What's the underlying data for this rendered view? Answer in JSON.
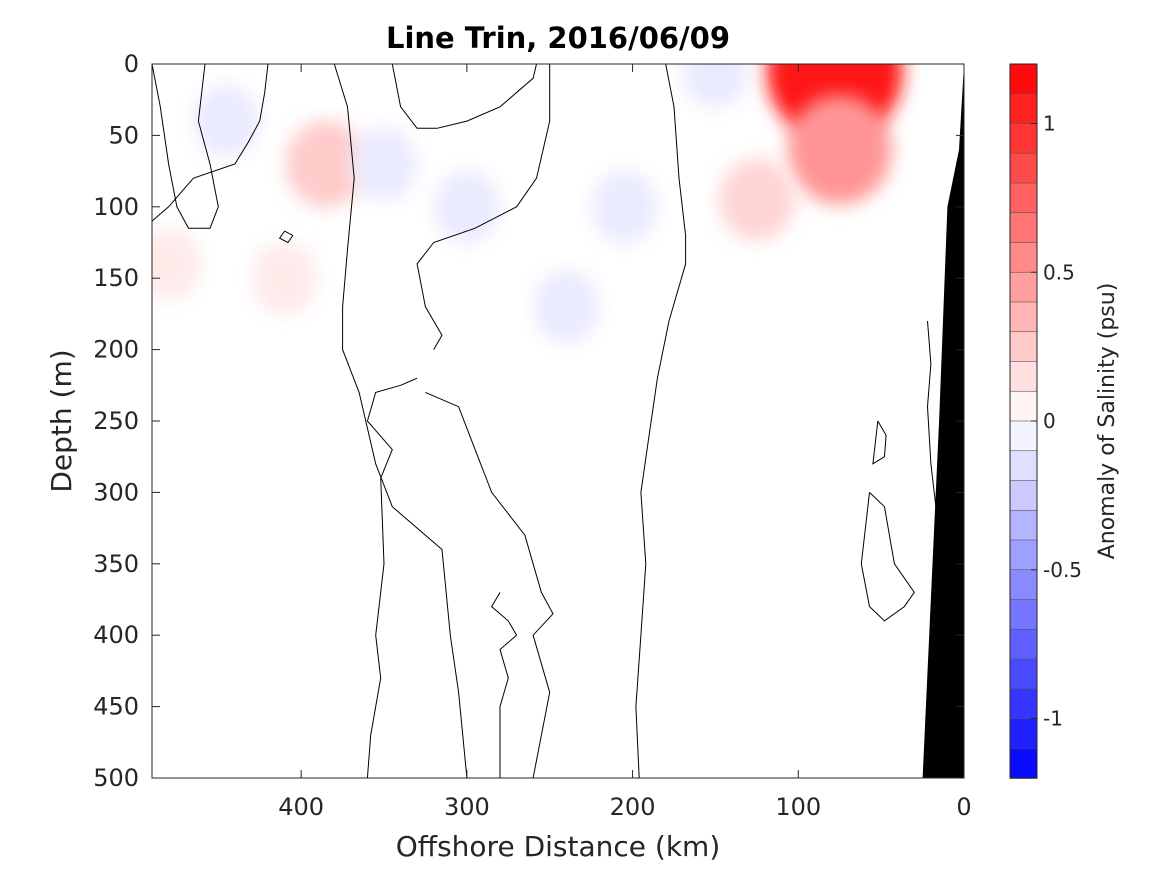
{
  "chart_data": {
    "type": "heatmap",
    "title": "Line Trin, 2016/06/09",
    "xlabel": "Offshore Distance (km)",
    "ylabel": "Depth (m)",
    "xlim": [
      490,
      0
    ],
    "ylim": [
      0,
      500
    ],
    "x_reversed": true,
    "y_reversed": true,
    "x_ticks": [
      400,
      300,
      200,
      100,
      0
    ],
    "y_ticks": [
      0,
      50,
      100,
      150,
      200,
      250,
      300,
      350,
      400,
      450,
      500
    ],
    "colorbar": {
      "label": "Anomaly of Salinity (psu)",
      "range": [
        -1.2,
        1.2
      ],
      "levels": 24,
      "ticks": [
        -1,
        -0.5,
        0,
        0.5,
        1
      ],
      "tick_labels": [
        "-1",
        "-0.5",
        "0",
        "0.5",
        "1"
      ],
      "colormap": "blue-white-red",
      "low_color": "#0000ff",
      "high_color": "#ff0000"
    },
    "zero_contour_lines": [
      [
        [
          490,
          0
        ],
        [
          485,
          30
        ],
        [
          480,
          70
        ],
        [
          475,
          100
        ],
        [
          468,
          115
        ],
        [
          455,
          115
        ],
        [
          450,
          100
        ],
        [
          455,
          70
        ],
        [
          462,
          40
        ],
        [
          458,
          0
        ]
      ],
      [
        [
          420,
          0
        ],
        [
          422,
          20
        ],
        [
          425,
          40
        ],
        [
          432,
          55
        ],
        [
          440,
          70
        ],
        [
          465,
          80
        ],
        [
          480,
          100
        ],
        [
          490,
          110
        ]
      ],
      [
        [
          405,
          120
        ],
        [
          408,
          125
        ],
        [
          413,
          122
        ],
        [
          410,
          117
        ],
        [
          405,
          120
        ]
      ],
      [
        [
          380,
          0
        ],
        [
          372,
          30
        ],
        [
          368,
          80
        ],
        [
          372,
          130
        ],
        [
          375,
          170
        ],
        [
          375,
          200
        ],
        [
          365,
          230
        ],
        [
          355,
          280
        ],
        [
          345,
          310
        ],
        [
          335,
          320
        ],
        [
          315,
          340
        ],
        [
          310,
          400
        ],
        [
          305,
          440
        ],
        [
          300,
          500
        ]
      ],
      [
        [
          345,
          0
        ],
        [
          340,
          30
        ],
        [
          330,
          45
        ],
        [
          318,
          45
        ],
        [
          300,
          40
        ],
        [
          280,
          30
        ],
        [
          260,
          10
        ],
        [
          258,
          0
        ]
      ],
      [
        [
          250,
          0
        ],
        [
          250,
          40
        ],
        [
          258,
          80
        ],
        [
          270,
          100
        ],
        [
          295,
          115
        ],
        [
          320,
          125
        ],
        [
          330,
          140
        ],
        [
          325,
          170
        ],
        [
          315,
          190
        ],
        [
          320,
          200
        ]
      ],
      [
        [
          180,
          0
        ],
        [
          175,
          30
        ],
        [
          172,
          80
        ],
        [
          168,
          120
        ],
        [
          168,
          140
        ],
        [
          178,
          180
        ],
        [
          185,
          220
        ],
        [
          190,
          260
        ],
        [
          195,
          300
        ],
        [
          192,
          350
        ],
        [
          195,
          400
        ],
        [
          198,
          450
        ],
        [
          196,
          500
        ]
      ],
      [
        [
          330,
          220
        ],
        [
          340,
          225
        ],
        [
          355,
          230
        ],
        [
          360,
          250
        ],
        [
          345,
          270
        ],
        [
          352,
          290
        ],
        [
          350,
          350
        ],
        [
          355,
          400
        ],
        [
          352,
          430
        ],
        [
          358,
          470
        ],
        [
          360,
          500
        ]
      ],
      [
        [
          325,
          230
        ],
        [
          305,
          240
        ],
        [
          295,
          270
        ],
        [
          285,
          300
        ],
        [
          265,
          330
        ],
        [
          260,
          350
        ],
        [
          255,
          370
        ],
        [
          248,
          385
        ],
        [
          260,
          400
        ],
        [
          250,
          440
        ],
        [
          255,
          470
        ],
        [
          260,
          500
        ]
      ],
      [
        [
          280,
          370
        ],
        [
          285,
          380
        ],
        [
          275,
          390
        ],
        [
          270,
          400
        ],
        [
          280,
          410
        ],
        [
          275,
          430
        ],
        [
          280,
          450
        ],
        [
          280,
          500
        ]
      ],
      [
        [
          52,
          250
        ],
        [
          47,
          260
        ],
        [
          48,
          275
        ],
        [
          55,
          280
        ],
        [
          52,
          250
        ]
      ],
      [
        [
          57,
          300
        ],
        [
          48,
          310
        ],
        [
          45,
          330
        ],
        [
          42,
          350
        ],
        [
          30,
          370
        ],
        [
          36,
          380
        ],
        [
          48,
          390
        ],
        [
          57,
          380
        ],
        [
          62,
          350
        ],
        [
          57,
          300
        ]
      ],
      [
        [
          22,
          180
        ],
        [
          20,
          210
        ],
        [
          22,
          240
        ],
        [
          20,
          280
        ],
        [
          16,
          320
        ],
        [
          14,
          360
        ]
      ]
    ],
    "anomaly_regions": [
      {
        "label": "positive_max",
        "x": 78,
        "y": 5,
        "value": 1.1
      },
      {
        "label": "positive",
        "x": 75,
        "y": 60,
        "value": 0.5
      },
      {
        "label": "positive",
        "x": 125,
        "y": 95,
        "value": 0.2
      },
      {
        "label": "positive",
        "x": 385,
        "y": 70,
        "value": 0.25
      },
      {
        "label": "positive",
        "x": 410,
        "y": 150,
        "value": 0.1
      },
      {
        "label": "positive",
        "x": 480,
        "y": 140,
        "value": 0.1
      },
      {
        "label": "negative",
        "x": 240,
        "y": 170,
        "value": -0.1
      },
      {
        "label": "negative",
        "x": 205,
        "y": 100,
        "value": -0.1
      },
      {
        "label": "negative",
        "x": 350,
        "y": 70,
        "value": -0.1
      },
      {
        "label": "negative",
        "x": 445,
        "y": 40,
        "value": -0.1
      },
      {
        "label": "negative",
        "x": 300,
        "y": 100,
        "value": -0.1
      },
      {
        "label": "negative",
        "x": 150,
        "y": 5,
        "value": -0.1
      }
    ],
    "bathymetry_polygon": [
      [
        0,
        0
      ],
      [
        3,
        60
      ],
      [
        10,
        100
      ],
      [
        15,
        250
      ],
      [
        25,
        500
      ],
      [
        0,
        500
      ]
    ],
    "bathymetry_color": "#000000"
  }
}
